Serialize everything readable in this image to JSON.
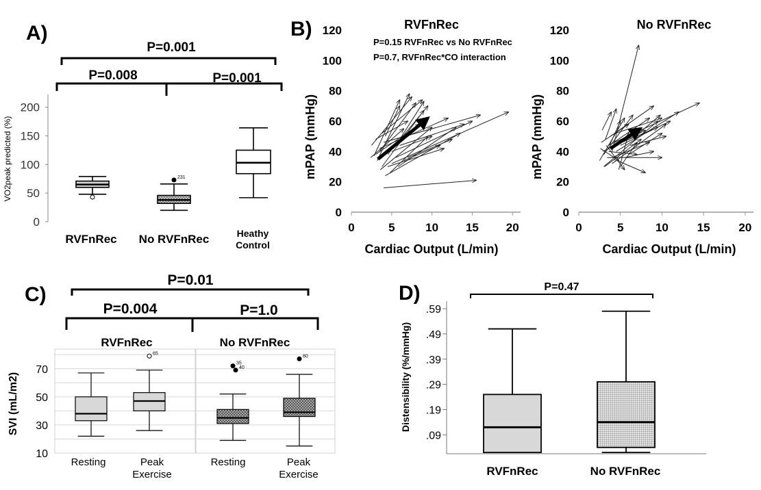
{
  "chart_data": [
    {
      "panel": "A)",
      "type": "box",
      "ylabel": "VO2peak predicted (%)",
      "ylim": [
        0,
        220
      ],
      "yticks": [
        0,
        50,
        100,
        150,
        200
      ],
      "categories": [
        "RVFnRec",
        "No RVFnRec",
        "Heathy Control"
      ],
      "category_labels": [
        [
          "RVFnRec"
        ],
        [
          "No RVFnRec"
        ],
        [
          "Heathy",
          "Control"
        ]
      ],
      "boxes": [
        {
          "min": 48,
          "q1": 60,
          "median": 65,
          "q3": 71,
          "max": 79,
          "fill": "#d4d4d4",
          "outliers": [
            {
              "y": 43,
              "filled": false,
              "label": ""
            }
          ]
        },
        {
          "min": 20,
          "q1": 32,
          "median": 38,
          "q3": 46,
          "max": 66,
          "fill": "#a9a9a9",
          "outliers": [
            {
              "y": 73,
              "filled": true,
              "label": "231"
            }
          ]
        },
        {
          "min": 42,
          "q1": 84,
          "median": 103,
          "q3": 125,
          "max": 164,
          "fill": "#ffffff",
          "outliers": []
        }
      ],
      "brackets": [
        {
          "label": "P=0.001"
        },
        {
          "label": "P=0.008"
        },
        {
          "label": "P=0.001"
        }
      ]
    },
    {
      "panel": "B)",
      "type": "arrow-plot",
      "xlabel": "Cardiac Output (L/min)",
      "ylabel": "mPAP (mmHg)",
      "xlim": [
        0,
        21
      ],
      "ylim": [
        0,
        120
      ],
      "xticks": [
        0,
        5,
        10,
        15,
        20
      ],
      "yticks": [
        0,
        20,
        40,
        60,
        80,
        100,
        120
      ],
      "subplots": [
        {
          "title": "RVFnRec",
          "annotations": [
            "P=0.15 RVFnRec vs No RVFnRec",
            "P=0.7, RVFnRec*CO interaction"
          ],
          "mean_arrow": [
            3.3,
            35,
            9.5,
            62
          ],
          "arrows": [
            [
              4.0,
              16,
              15.5,
              21
            ],
            [
              3.2,
              34,
              7.2,
              78
            ],
            [
              2.8,
              37,
              6.0,
              74
            ],
            [
              3.5,
              40,
              8.0,
              72
            ],
            [
              2.5,
              44,
              7.5,
              76
            ],
            [
              3.8,
              30,
              9.0,
              67
            ],
            [
              4.5,
              38,
              9.5,
              70
            ],
            [
              3.0,
              48,
              7.0,
              60
            ],
            [
              3.6,
              28,
              10.0,
              56
            ],
            [
              4.2,
              24,
              13.5,
              52
            ],
            [
              3.5,
              42,
              12.0,
              62
            ],
            [
              5.0,
              32,
              19.5,
              66
            ],
            [
              4.0,
              46,
              16.0,
              64
            ],
            [
              5.5,
              36,
              15.0,
              60
            ],
            [
              6.0,
              44,
              14.0,
              58
            ],
            [
              3.0,
              38,
              8.5,
              58
            ],
            [
              5.0,
              40,
              10.0,
              50
            ],
            [
              6.5,
              34,
              11.0,
              44
            ],
            [
              7.0,
              36,
              12.5,
              48
            ],
            [
              4.5,
              30,
              11.5,
              42
            ],
            [
              3.8,
              52,
              8.8,
              74
            ],
            [
              6.0,
              48,
              9.0,
              73
            ],
            [
              2.4,
              36,
              6.5,
              55
            ],
            [
              4.8,
              26,
              9.5,
              50
            ],
            [
              5.8,
              30,
              13.0,
              56
            ],
            [
              4.2,
              50,
              6.0,
              70
            ]
          ]
        },
        {
          "title": "No RVFnRec",
          "annotations": [],
          "mean_arrow": [
            3.8,
            42,
            7.4,
            55
          ],
          "arrows": [
            [
              4.0,
              40,
              7.2,
              110
            ],
            [
              2.8,
              54,
              3.9,
              66
            ],
            [
              3.2,
              48,
              4.5,
              68
            ],
            [
              3.0,
              38,
              6.5,
              64
            ],
            [
              2.5,
              34,
              5.5,
              62
            ],
            [
              3.5,
              44,
              14.5,
              72
            ],
            [
              4.5,
              40,
              12.0,
              66
            ],
            [
              3.0,
              30,
              9.5,
              60
            ],
            [
              4.0,
              32,
              10.5,
              58
            ],
            [
              5.0,
              44,
              11.0,
              60
            ],
            [
              3.8,
              50,
              9.0,
              70
            ],
            [
              6.0,
              38,
              10.0,
              52
            ],
            [
              2.6,
              42,
              4.8,
              34
            ],
            [
              3.3,
              44,
              5.5,
              28
            ],
            [
              4.8,
              28,
              6.0,
              52
            ],
            [
              5.5,
              36,
              9.0,
              40
            ],
            [
              3.4,
              36,
              10.0,
              36
            ],
            [
              4.2,
              46,
              8.5,
              62
            ],
            [
              2.9,
              40,
              8.0,
              54
            ],
            [
              4.6,
              34,
              8.0,
              26
            ],
            [
              3.7,
              44,
              5.0,
              60
            ],
            [
              5.2,
              46,
              9.5,
              56
            ],
            [
              3.1,
              30,
              7.5,
              48
            ],
            [
              4.4,
              52,
              10.0,
              62
            ],
            [
              6.2,
              44,
              10.5,
              50
            ],
            [
              3.6,
              40,
              7.0,
              38
            ],
            [
              2.7,
              46,
              6.0,
              58
            ],
            [
              5.0,
              30,
              7.0,
              46
            ],
            [
              4.0,
              36,
              8.5,
              46
            ],
            [
              6.8,
              50,
              9.8,
              64
            ]
          ]
        }
      ]
    },
    {
      "panel": "C)",
      "type": "box",
      "ylabel": "SVI (mL/m2)",
      "ylim": [
        10,
        84
      ],
      "yticks": [
        10,
        30,
        50,
        70
      ],
      "gridlines": [
        20,
        30,
        40,
        50,
        60,
        70,
        80
      ],
      "groups": [
        {
          "title": "RVFnRec",
          "categories": [
            [
              "Resting"
            ],
            [
              "Peak",
              "Exercise"
            ]
          ],
          "boxes": [
            {
              "min": 22,
              "q1": 33,
              "median": 38,
              "q3": 50,
              "max": 67,
              "fill": "#d8d8d8",
              "outliers": []
            },
            {
              "min": 26,
              "q1": 40,
              "median": 47,
              "q3": 53,
              "max": 69,
              "fill": "#d8d8d8",
              "outliers": [
                {
                  "y": 79,
                  "filled": false,
                  "label": "65"
                }
              ]
            }
          ]
        },
        {
          "title": "No RVFnRec",
          "categories": [
            [
              "Resting"
            ],
            [
              "Peak",
              "Exercise"
            ]
          ],
          "boxes": [
            {
              "min": 19,
              "q1": 31,
              "median": 35,
              "q3": 41,
              "max": 52,
              "fill": "#a9a9a9",
              "outliers": [
                {
                  "y": 72,
                  "filled": true,
                  "label": "35"
                },
                {
                  "y": 69,
                  "filled": true,
                  "label": "40"
                }
              ]
            },
            {
              "min": 15,
              "q1": 36,
              "median": 39,
              "q3": 49,
              "max": 66,
              "fill": "#9a9a9a",
              "outliers": [
                {
                  "y": 77,
                  "filled": true,
                  "label": "80"
                }
              ]
            }
          ]
        }
      ],
      "brackets": [
        {
          "label": "P=0.01"
        },
        {
          "label": "P=0.004"
        },
        {
          "label": "P=1.0"
        }
      ]
    },
    {
      "panel": "D)",
      "type": "box",
      "ylabel": "Distensibility (%/mmHg)",
      "ylim": [
        0.015,
        0.62
      ],
      "yticks": [
        0.09,
        0.19,
        0.29,
        0.39,
        0.49,
        0.59
      ],
      "ytick_labels": [
        ".09",
        ".19",
        ".29",
        ".39",
        ".49",
        ".59"
      ],
      "categories": [
        "RVFnRec",
        "No RVFnRec"
      ],
      "boxes": [
        {
          "min": 0.02,
          "q1": 0.02,
          "median": 0.12,
          "q3": 0.25,
          "max": 0.51,
          "fill": "#d8d8d8",
          "outliers": []
        },
        {
          "min": 0.02,
          "q1": 0.04,
          "median": 0.14,
          "q3": 0.3,
          "max": 0.58,
          "fill": "#b4b4b4",
          "outliers": []
        }
      ],
      "brackets": [
        {
          "label": "P=0.47"
        }
      ]
    }
  ]
}
